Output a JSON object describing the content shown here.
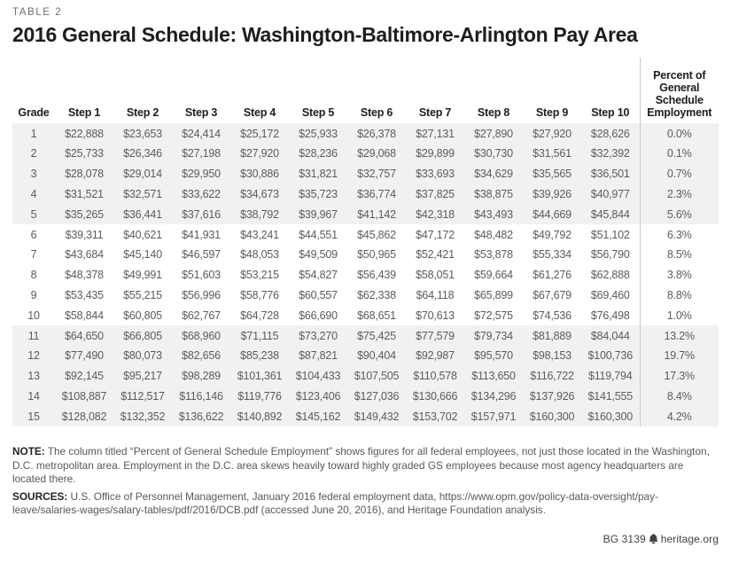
{
  "page": {
    "eyebrow": "TABLE 2",
    "title": "2016 General Schedule: Washington-Baltimore-Arlington Pay Area",
    "footer": {
      "doc_id": "BG 3139",
      "site": "heritage.org",
      "icon": "liberty-bell-icon"
    }
  },
  "table": {
    "columns": [
      "Grade",
      "Step 1",
      "Step 2",
      "Step 3",
      "Step 4",
      "Step 5",
      "Step 6",
      "Step 7",
      "Step 8",
      "Step 9",
      "Step 10"
    ],
    "percent_header": "Percent of\nGeneral\nSchedule\nEmployment",
    "percent_header_full": "Percent of General Schedule Employment",
    "band_color": "#f1f1f2",
    "divider_color": "#c9c9cb",
    "rows": [
      {
        "grade": "1",
        "steps": [
          "$22,888",
          "$23,653",
          "$24,414",
          "$25,172",
          "$25,933",
          "$26,378",
          "$27,131",
          "$27,890",
          "$27,920",
          "$28,626"
        ],
        "percent": "0.0%"
      },
      {
        "grade": "2",
        "steps": [
          "$25,733",
          "$26,346",
          "$27,198",
          "$27,920",
          "$28,236",
          "$29,068",
          "$29,899",
          "$30,730",
          "$31,561",
          "$32,392"
        ],
        "percent": "0.1%"
      },
      {
        "grade": "3",
        "steps": [
          "$28,078",
          "$29,014",
          "$29,950",
          "$30,886",
          "$31,821",
          "$32,757",
          "$33,693",
          "$34,629",
          "$35,565",
          "$36,501"
        ],
        "percent": "0.7%"
      },
      {
        "grade": "4",
        "steps": [
          "$31,521",
          "$32,571",
          "$33,622",
          "$34,673",
          "$35,723",
          "$36,774",
          "$37,825",
          "$38,875",
          "$39,926",
          "$40,977"
        ],
        "percent": "2.3%"
      },
      {
        "grade": "5",
        "steps": [
          "$35,265",
          "$36,441",
          "$37,616",
          "$38,792",
          "$39,967",
          "$41,142",
          "$42,318",
          "$43,493",
          "$44,669",
          "$45,844"
        ],
        "percent": "5.6%"
      },
      {
        "grade": "6",
        "steps": [
          "$39,311",
          "$40,621",
          "$41,931",
          "$43,241",
          "$44,551",
          "$45,862",
          "$47,172",
          "$48,482",
          "$49,792",
          "$51,102"
        ],
        "percent": "6.3%"
      },
      {
        "grade": "7",
        "steps": [
          "$43,684",
          "$45,140",
          "$46,597",
          "$48,053",
          "$49,509",
          "$50,965",
          "$52,421",
          "$53,878",
          "$55,334",
          "$56,790"
        ],
        "percent": "8.5%"
      },
      {
        "grade": "8",
        "steps": [
          "$48,378",
          "$49,991",
          "$51,603",
          "$53,215",
          "$54,827",
          "$56,439",
          "$58,051",
          "$59,664",
          "$61,276",
          "$62,888"
        ],
        "percent": "3.8%"
      },
      {
        "grade": "9",
        "steps": [
          "$53,435",
          "$55,215",
          "$56,996",
          "$58,776",
          "$60,557",
          "$62,338",
          "$64,118",
          "$65,899",
          "$67,679",
          "$69,460"
        ],
        "percent": "8.8%"
      },
      {
        "grade": "10",
        "steps": [
          "$58,844",
          "$60,805",
          "$62,767",
          "$64,728",
          "$66,690",
          "$68,651",
          "$70,613",
          "$72,575",
          "$74,536",
          "$76,498"
        ],
        "percent": "1.0%"
      },
      {
        "grade": "11",
        "steps": [
          "$64,650",
          "$66,805",
          "$68,960",
          "$71,115",
          "$73,270",
          "$75,425",
          "$77,579",
          "$79,734",
          "$81,889",
          "$84,044"
        ],
        "percent": "13.2%"
      },
      {
        "grade": "12",
        "steps": [
          "$77,490",
          "$80,073",
          "$82,656",
          "$85,238",
          "$87,821",
          "$90,404",
          "$92,987",
          "$95,570",
          "$98,153",
          "$100,736"
        ],
        "percent": "19.7%"
      },
      {
        "grade": "13",
        "steps": [
          "$92,145",
          "$95,217",
          "$98,289",
          "$101,361",
          "$104,433",
          "$107,505",
          "$110,578",
          "$113,650",
          "$116,722",
          "$119,794"
        ],
        "percent": "17.3%"
      },
      {
        "grade": "14",
        "steps": [
          "$108,887",
          "$112,517",
          "$116,146",
          "$119,776",
          "$123,406",
          "$127,036",
          "$130,666",
          "$134,296",
          "$137,926",
          "$141,555"
        ],
        "percent": "8.4%"
      },
      {
        "grade": "15",
        "steps": [
          "$128,082",
          "$132,352",
          "$136,622",
          "$140,892",
          "$145,162",
          "$149,432",
          "$153,702",
          "$157,971",
          "$160,300",
          "$160,300"
        ],
        "percent": "4.2%"
      }
    ]
  },
  "notes": {
    "note_label": "NOTE:",
    "note_text": " The column titled “Percent of General Schedule Employment” shows figures for all federal employees, not just those located in the Washington, D.C. metropolitan area. Employment in the D.C. area skews heavily toward highly graded GS employees because most agency headquarters are located there.",
    "sources_label": "SOURCES:",
    "sources_text": " U.S. Office of Personnel Management, January 2016 federal employment data, https://www.opm.gov/policy-data-oversight/pay-leave/salaries-wages/salary-tables/pdf/2016/DCB.pdf (accessed June 20, 2016), and Heritage Foundation analysis."
  }
}
